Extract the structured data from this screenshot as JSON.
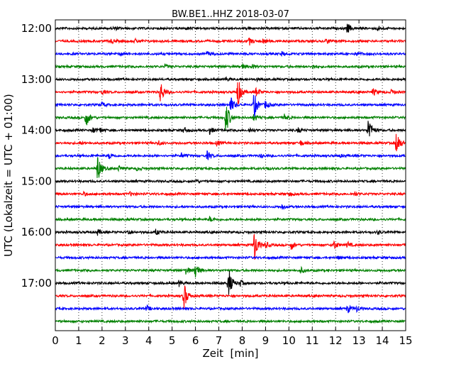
{
  "chart_data": {
    "type": "line",
    "title": "BW.BE1..HHZ 2018-03-07",
    "xlabel": "Zeit  [min]",
    "ylabel": "UTC (Lokalzeit = UTC + 01:00)",
    "xlim": [
      0,
      15
    ],
    "x_ticks": [
      0,
      1,
      2,
      3,
      4,
      5,
      6,
      7,
      8,
      9,
      10,
      11,
      12,
      13,
      14,
      15
    ],
    "x_tick_labels": [
      "0",
      "1",
      "2",
      "3",
      "4",
      "5",
      "6",
      "7",
      "8",
      "9",
      "10",
      "11",
      "12",
      "13",
      "14",
      "15"
    ],
    "y_tick_labels": [
      {
        "label": "12:00",
        "trace_index": 0
      },
      {
        "label": "13:00",
        "trace_index": 4
      },
      {
        "label": "14:00",
        "trace_index": 8
      },
      {
        "label": "15:00",
        "trace_index": 12
      },
      {
        "label": "16:00",
        "trace_index": 16
      },
      {
        "label": "17:00",
        "trace_index": 20
      }
    ],
    "grid": "vertical dotted",
    "trace_colors": [
      "#000000",
      "#ff0000",
      "#0000ff",
      "#008000"
    ],
    "series": [
      {
        "start": "12:00",
        "events": [
          {
            "t": 2.5,
            "a": 0.3
          },
          {
            "t": 5.6,
            "a": 0.2
          },
          {
            "t": 8.2,
            "a": 0.2
          },
          {
            "t": 12.5,
            "a": 0.9
          },
          {
            "t": 13.8,
            "a": 0.4
          }
        ]
      },
      {
        "start": "12:15",
        "events": [
          {
            "t": 2.4,
            "a": 0.4
          },
          {
            "t": 3.4,
            "a": 0.3
          },
          {
            "t": 8.3,
            "a": 0.6
          },
          {
            "t": 8.9,
            "a": 0.6
          },
          {
            "t": 11.6,
            "a": 0.5
          }
        ]
      },
      {
        "start": "12:30",
        "events": [
          {
            "t": 2.8,
            "a": 0.3
          },
          {
            "t": 6.5,
            "a": 0.4
          },
          {
            "t": 9.7,
            "a": 0.3
          },
          {
            "t": 12.9,
            "a": 0.3
          }
        ]
      },
      {
        "start": "12:45",
        "events": [
          {
            "t": 4.7,
            "a": 0.3
          },
          {
            "t": 8.0,
            "a": 0.5
          },
          {
            "t": 8.4,
            "a": 0.4
          },
          {
            "t": 11.0,
            "a": 0.3
          }
        ]
      },
      {
        "start": "13:00",
        "events": [
          {
            "t": 7.3,
            "a": 0.3
          },
          {
            "t": 8.6,
            "a": 0.2
          }
        ]
      },
      {
        "start": "13:15",
        "events": [
          {
            "t": 2.0,
            "a": 0.3
          },
          {
            "t": 4.5,
            "a": 2.0
          },
          {
            "t": 7.8,
            "a": 2.7
          },
          {
            "t": 8.6,
            "a": 0.8
          },
          {
            "t": 13.6,
            "a": 0.6
          },
          {
            "t": 14.4,
            "a": 0.5
          }
        ]
      },
      {
        "start": "13:30",
        "events": [
          {
            "t": 2.0,
            "a": 0.4
          },
          {
            "t": 7.5,
            "a": 1.4
          },
          {
            "t": 8.5,
            "a": 2.3
          },
          {
            "t": 9.0,
            "a": 0.7
          }
        ]
      },
      {
        "start": "13:45",
        "events": [
          {
            "t": 1.3,
            "a": 1.7
          },
          {
            "t": 7.3,
            "a": 3.0
          },
          {
            "t": 8.5,
            "a": 0.6
          },
          {
            "t": 9.8,
            "a": 0.5
          }
        ]
      },
      {
        "start": "14:00",
        "events": [
          {
            "t": 1.6,
            "a": 0.5
          },
          {
            "t": 1.9,
            "a": 0.4
          },
          {
            "t": 5.5,
            "a": 0.5
          },
          {
            "t": 6.6,
            "a": 0.6
          },
          {
            "t": 8.3,
            "a": 0.4
          },
          {
            "t": 10.4,
            "a": 0.4
          },
          {
            "t": 13.4,
            "a": 2.5
          }
        ]
      },
      {
        "start": "14:15",
        "events": [
          {
            "t": 1.0,
            "a": 0.3
          },
          {
            "t": 4.4,
            "a": 0.4
          },
          {
            "t": 6.9,
            "a": 0.5
          },
          {
            "t": 10.5,
            "a": 0.4
          },
          {
            "t": 14.6,
            "a": 2.3
          }
        ]
      },
      {
        "start": "14:30",
        "events": [
          {
            "t": 2.3,
            "a": 0.5
          },
          {
            "t": 5.4,
            "a": 0.4
          },
          {
            "t": 6.5,
            "a": 0.7
          },
          {
            "t": 8.8,
            "a": 0.3
          },
          {
            "t": 12.1,
            "a": 0.3
          }
        ]
      },
      {
        "start": "14:45",
        "events": [
          {
            "t": 1.8,
            "a": 2.5
          },
          {
            "t": 2.7,
            "a": 0.4
          },
          {
            "t": 3.5,
            "a": 0.3
          },
          {
            "t": 9.0,
            "a": 0.3
          }
        ]
      },
      {
        "start": "15:00",
        "events": [
          {
            "t": 6.0,
            "a": 0.3
          }
        ]
      },
      {
        "start": "15:15",
        "events": [
          {
            "t": 1.2,
            "a": 0.3
          },
          {
            "t": 3.2,
            "a": 0.3
          },
          {
            "t": 10.0,
            "a": 0.3
          },
          {
            "t": 12.8,
            "a": 0.3
          }
        ]
      },
      {
        "start": "15:30",
        "events": [
          {
            "t": 9.7,
            "a": 0.4
          }
        ]
      },
      {
        "start": "15:45",
        "events": [
          {
            "t": 6.6,
            "a": 0.4
          },
          {
            "t": 15.0,
            "a": 0.5
          }
        ]
      },
      {
        "start": "16:00",
        "events": [
          {
            "t": 1.8,
            "a": 0.5
          },
          {
            "t": 3.1,
            "a": 0.5
          },
          {
            "t": 4.3,
            "a": 0.5
          },
          {
            "t": 13.8,
            "a": 0.3
          }
        ]
      },
      {
        "start": "16:15",
        "events": [
          {
            "t": 8.5,
            "a": 3.2
          },
          {
            "t": 9.0,
            "a": 0.5
          },
          {
            "t": 10.1,
            "a": 0.7
          },
          {
            "t": 11.9,
            "a": 0.9
          },
          {
            "t": 12.5,
            "a": 0.5
          }
        ]
      },
      {
        "start": "16:30",
        "events": [
          {
            "t": 12.1,
            "a": 0.2
          }
        ]
      },
      {
        "start": "16:45",
        "events": [
          {
            "t": 5.6,
            "a": 0.7
          },
          {
            "t": 6.0,
            "a": 1.4
          },
          {
            "t": 10.5,
            "a": 0.5
          }
        ]
      },
      {
        "start": "17:00",
        "events": [
          {
            "t": 5.3,
            "a": 0.5
          },
          {
            "t": 7.4,
            "a": 2.8
          },
          {
            "t": 7.9,
            "a": 0.5
          }
        ]
      },
      {
        "start": "17:15",
        "events": [
          {
            "t": 5.5,
            "a": 2.3
          }
        ]
      },
      {
        "start": "17:30",
        "events": [
          {
            "t": 3.9,
            "a": 0.5
          },
          {
            "t": 12.5,
            "a": 0.8
          },
          {
            "t": 12.9,
            "a": 0.4
          }
        ]
      },
      {
        "start": "17:45",
        "events": []
      }
    ]
  }
}
